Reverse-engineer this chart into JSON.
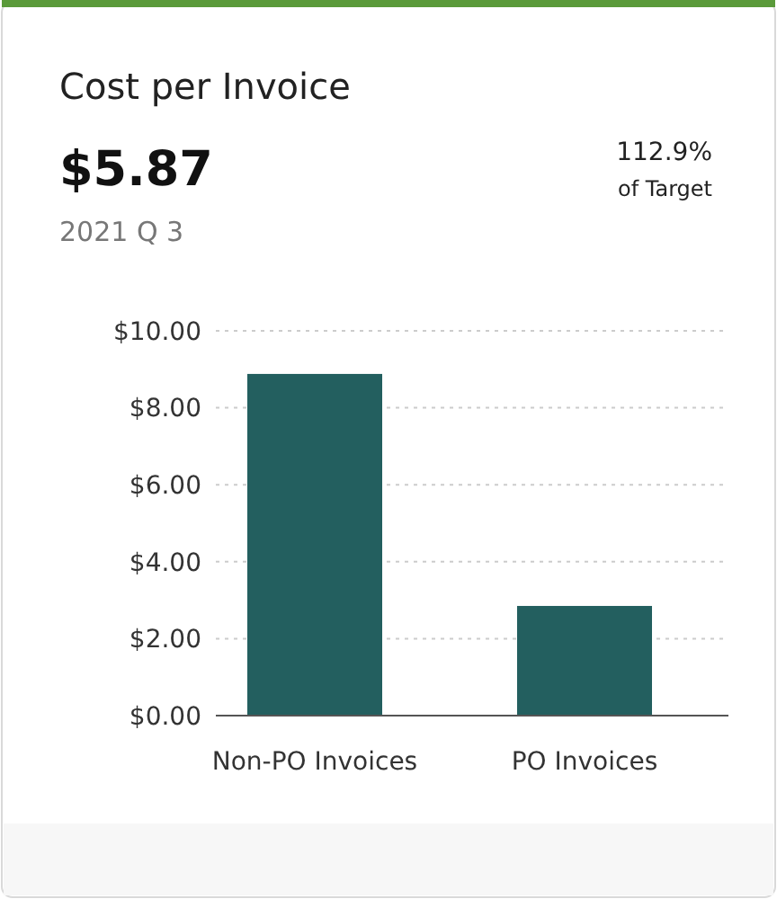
{
  "chart_data": {
    "type": "bar",
    "title": "Cost per Invoice",
    "annotations": [
      "$5.87",
      "2021 Q 3",
      "112.9%",
      "of Target"
    ],
    "categories": [
      "Non-PO Invoices",
      "PO Invoices"
    ],
    "values": [
      8.88,
      2.85
    ],
    "color": "#235f5f",
    "ylim": [
      0,
      10
    ],
    "yticks": [
      {
        "value": 0,
        "label": "$0.00"
      },
      {
        "value": 2,
        "label": "$2.00"
      },
      {
        "value": 4,
        "label": "$4.00"
      },
      {
        "value": 6,
        "label": "$6.00"
      },
      {
        "value": 8,
        "label": "$8.00"
      },
      {
        "value": 10,
        "label": "$10.00"
      }
    ],
    "grid": "y"
  }
}
